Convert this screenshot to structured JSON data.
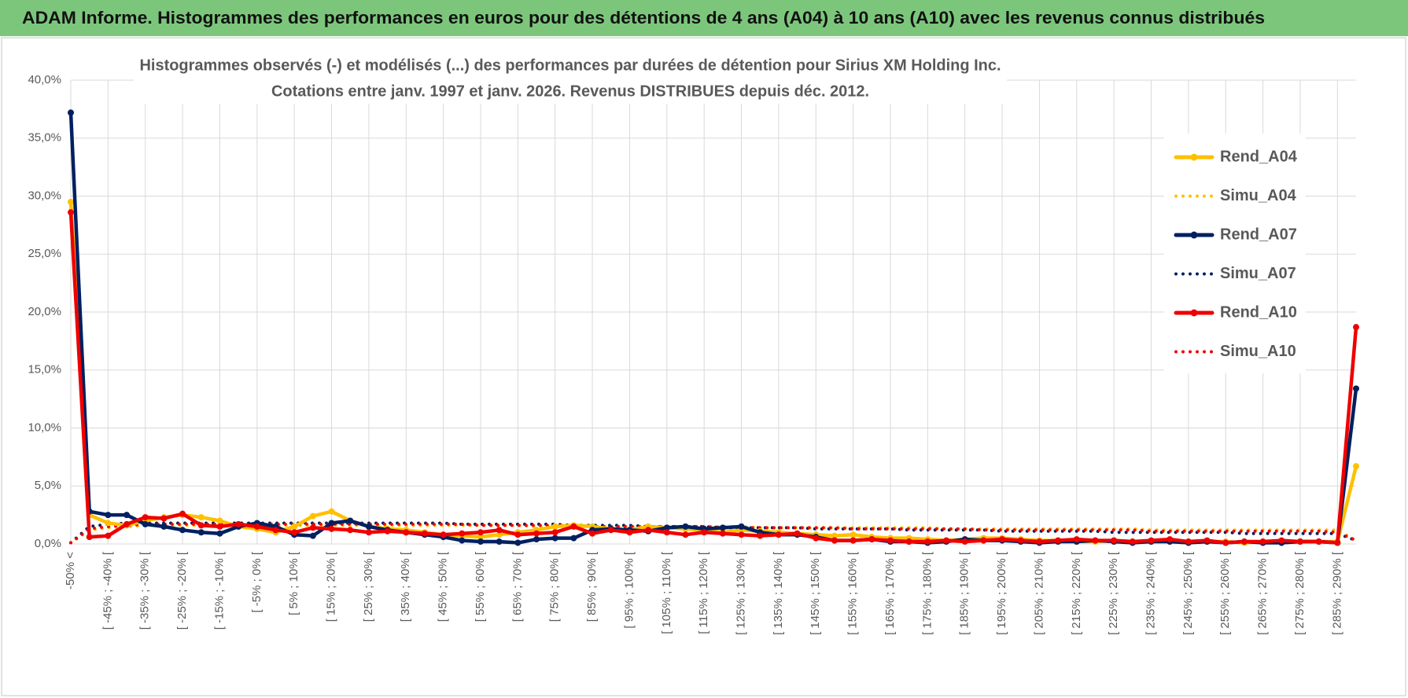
{
  "header": {
    "title": "ADAM Informe. Histogrammes des performances en euros pour des détentions de 4 ans (A04) à 10 ans (A10) avec les revenus connus distribués"
  },
  "chart_data": {
    "type": "line",
    "title": "Histogrammes observés (-) et modélisés (...) des performances par durées de détention pour Sirius XM Holding Inc.",
    "subtitle": "Cotations entre janv. 1997 et janv. 2026. Revenus DISTRIBUES depuis déc. 2012.",
    "categories": [
      "-50% <",
      null,
      "[ -45% ; -40% [",
      null,
      "[ -35% ; -30% [",
      null,
      "[ -25% ; -20% [",
      null,
      "[ -15% ; -10% [",
      null,
      "[ -5% ; 0% [",
      null,
      "[ 5% ; 10% [",
      null,
      "[ 15% ; 20% [",
      null,
      "[ 25% ; 30% [",
      null,
      "[ 35% ; 40% [",
      null,
      "[ 45% ; 50% [",
      null,
      "[ 55% ; 60% [",
      null,
      "[ 65% ; 70% [",
      null,
      "[ 75% ; 80% [",
      null,
      "[ 85% ; 90% [",
      null,
      "[ 95% ; 100% [",
      null,
      "[ 105% ; 110% [",
      null,
      "[ 115% ; 120% [",
      null,
      "[ 125% ; 130% [",
      null,
      "[ 135% ; 140% [",
      null,
      "[ 145% ; 150% [",
      null,
      "[ 155% ; 160% [",
      null,
      "[ 165% ; 170% [",
      null,
      "[ 175% ; 180% [",
      null,
      "[ 185% ; 190% [",
      null,
      "[ 195% ; 200% [",
      null,
      "[ 205% ; 210% [",
      null,
      "[ 215% ; 220% [",
      null,
      "[ 225% ; 230% [",
      null,
      "[ 235% ; 240% [",
      null,
      "[ 245% ; 250% [",
      null,
      "[ 255% ; 260% [",
      null,
      "[ 265% ; 270% [",
      null,
      "[ 275% ; 280% [",
      null,
      "[ 285% ; 290% [",
      null
    ],
    "ylim": [
      0,
      40
    ],
    "yticks": [
      {
        "value": 0,
        "label": "0,0%"
      },
      {
        "value": 5,
        "label": "5,0%"
      },
      {
        "value": 10,
        "label": "10,0%"
      },
      {
        "value": 15,
        "label": "15,0%"
      },
      {
        "value": 20,
        "label": "20,0%"
      },
      {
        "value": 25,
        "label": "25,0%"
      },
      {
        "value": 30,
        "label": "30,0%"
      },
      {
        "value": 35,
        "label": "35,0%"
      },
      {
        "value": 40,
        "label": "40,0%"
      }
    ],
    "grid": true,
    "legend": "right",
    "series": [
      {
        "name": "Rend_A04",
        "color": "#ffc000",
        "style": "solid",
        "values": [
          29.5,
          2.5,
          1.8,
          1.6,
          2.0,
          2.3,
          2.5,
          2.3,
          2.0,
          1.5,
          1.3,
          1.0,
          1.5,
          2.4,
          2.8,
          2.0,
          1.5,
          1.3,
          1.2,
          1.0,
          0.8,
          0.7,
          0.6,
          0.8,
          1.0,
          1.2,
          1.5,
          1.6,
          1.5,
          1.3,
          1.2,
          1.5,
          1.4,
          1.3,
          1.2,
          1.0,
          1.2,
          1.1,
          1.0,
          0.9,
          0.8,
          0.7,
          0.8,
          0.6,
          0.5,
          0.5,
          0.4,
          0.3,
          0.4,
          0.5,
          0.5,
          0.4,
          0.3,
          0.3,
          0.2,
          0.2,
          0.3,
          0.2,
          0.2,
          0.2,
          0.1,
          0.2,
          0.2,
          0.1,
          0.2,
          0.1,
          0.2,
          0.2,
          0.2,
          6.7
        ]
      },
      {
        "name": "Simu_A04",
        "color": "#ffc000",
        "style": "dotted",
        "values": [
          0.1,
          1.2,
          1.4,
          1.5,
          1.6,
          1.6,
          1.6,
          1.6,
          1.6,
          1.6,
          1.6,
          1.6,
          1.6,
          1.6,
          1.6,
          1.6,
          1.6,
          1.6,
          1.6,
          1.6,
          1.6,
          1.6,
          1.6,
          1.6,
          1.6,
          1.5,
          1.5,
          1.5,
          1.5,
          1.5,
          1.5,
          1.5,
          1.5,
          1.5,
          1.5,
          1.5,
          1.5,
          1.4,
          1.4,
          1.4,
          1.4,
          1.4,
          1.4,
          1.4,
          1.4,
          1.4,
          1.4,
          1.3,
          1.3,
          1.3,
          1.3,
          1.3,
          1.3,
          1.3,
          1.3,
          1.3,
          1.3,
          1.3,
          1.2,
          1.2,
          1.2,
          1.2,
          1.2,
          1.2,
          1.2,
          1.2,
          1.2,
          1.2,
          1.2,
          0.3
        ]
      },
      {
        "name": "Rend_A07",
        "color": "#002060",
        "style": "solid",
        "values": [
          37.2,
          2.8,
          2.5,
          2.5,
          1.7,
          1.5,
          1.2,
          1.0,
          0.9,
          1.5,
          1.8,
          1.5,
          0.8,
          0.7,
          1.8,
          2.0,
          1.5,
          1.2,
          1.0,
          0.8,
          0.6,
          0.3,
          0.2,
          0.2,
          0.1,
          0.4,
          0.5,
          0.5,
          1.2,
          1.3,
          1.2,
          1.1,
          1.4,
          1.5,
          1.3,
          1.4,
          1.5,
          1.0,
          0.8,
          0.8,
          0.6,
          0.3,
          0.3,
          0.4,
          0.2,
          0.2,
          0.1,
          0.2,
          0.4,
          0.3,
          0.3,
          0.2,
          0.1,
          0.2,
          0.2,
          0.3,
          0.2,
          0.1,
          0.2,
          0.2,
          0.1,
          0.2,
          0.1,
          0.2,
          0.1,
          0.1,
          0.2,
          0.2,
          0.1,
          13.4
        ]
      },
      {
        "name": "Simu_A07",
        "color": "#002060",
        "style": "dotted",
        "values": [
          0.1,
          1.5,
          1.7,
          1.8,
          1.8,
          1.8,
          1.8,
          1.8,
          1.8,
          1.8,
          1.8,
          1.8,
          1.8,
          1.8,
          1.8,
          1.8,
          1.8,
          1.8,
          1.8,
          1.8,
          1.8,
          1.7,
          1.7,
          1.7,
          1.7,
          1.7,
          1.7,
          1.6,
          1.6,
          1.6,
          1.6,
          1.5,
          1.5,
          1.5,
          1.5,
          1.4,
          1.4,
          1.4,
          1.4,
          1.4,
          1.3,
          1.3,
          1.3,
          1.3,
          1.3,
          1.2,
          1.2,
          1.2,
          1.2,
          1.2,
          1.1,
          1.1,
          1.1,
          1.1,
          1.1,
          1.1,
          1.0,
          1.0,
          1.0,
          1.0,
          1.0,
          1.0,
          1.0,
          0.9,
          0.9,
          0.9,
          0.9,
          0.9,
          0.9,
          0.3
        ]
      },
      {
        "name": "Rend_A10",
        "color": "#ee0000",
        "style": "solid",
        "values": [
          28.6,
          0.6,
          0.7,
          1.7,
          2.3,
          2.2,
          2.6,
          1.6,
          1.5,
          1.7,
          1.5,
          1.2,
          1.0,
          1.4,
          1.3,
          1.2,
          1.0,
          1.1,
          1.0,
          0.9,
          0.8,
          0.9,
          1.0,
          1.2,
          0.8,
          0.9,
          1.0,
          1.5,
          0.9,
          1.2,
          1.0,
          1.2,
          1.0,
          0.8,
          1.0,
          0.9,
          0.8,
          0.7,
          0.8,
          0.9,
          0.5,
          0.3,
          0.3,
          0.4,
          0.3,
          0.2,
          0.2,
          0.3,
          0.2,
          0.3,
          0.4,
          0.3,
          0.2,
          0.3,
          0.4,
          0.3,
          0.3,
          0.2,
          0.3,
          0.4,
          0.2,
          0.3,
          0.1,
          0.2,
          0.2,
          0.3,
          0.2,
          0.2,
          0.1,
          18.7
        ]
      },
      {
        "name": "Simu_A10",
        "color": "#ee0000",
        "style": "dotted",
        "values": [
          0.1,
          1.3,
          1.5,
          1.6,
          1.7,
          1.7,
          1.7,
          1.7,
          1.7,
          1.7,
          1.7,
          1.7,
          1.7,
          1.7,
          1.7,
          1.7,
          1.7,
          1.7,
          1.7,
          1.7,
          1.7,
          1.7,
          1.6,
          1.6,
          1.6,
          1.6,
          1.6,
          1.6,
          1.5,
          1.5,
          1.5,
          1.5,
          1.5,
          1.5,
          1.5,
          1.4,
          1.4,
          1.4,
          1.4,
          1.4,
          1.4,
          1.4,
          1.3,
          1.3,
          1.3,
          1.3,
          1.3,
          1.3,
          1.3,
          1.2,
          1.2,
          1.2,
          1.2,
          1.2,
          1.2,
          1.2,
          1.2,
          1.2,
          1.1,
          1.1,
          1.1,
          1.1,
          1.1,
          1.1,
          1.1,
          1.1,
          1.1,
          1.1,
          1.0,
          0.3
        ]
      }
    ]
  }
}
